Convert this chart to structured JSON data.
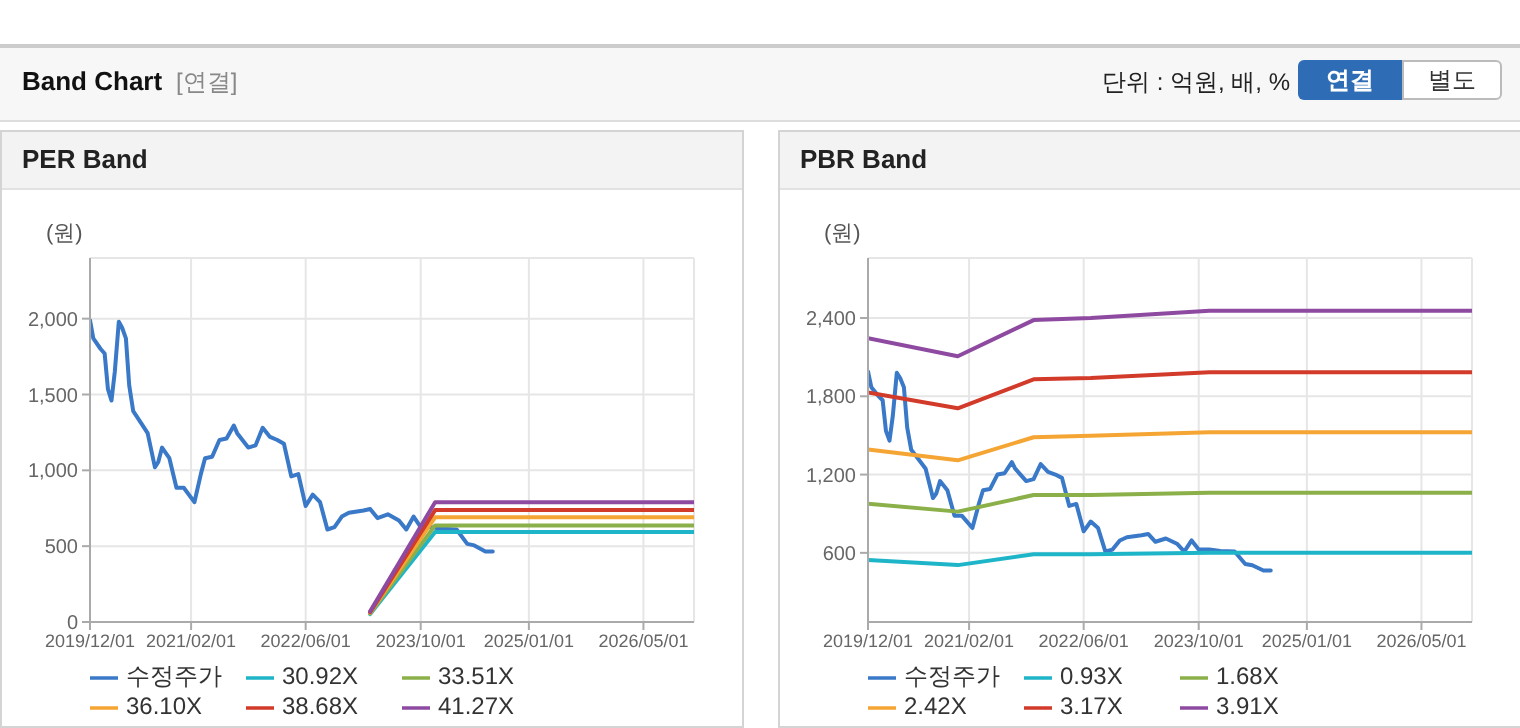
{
  "chart_data": [
    {
      "type": "line",
      "title": "PER Band",
      "ylabel": "(원)",
      "annotations": [
        "Band Chart",
        "[연결]",
        "단위 : 억원, 배, %",
        "연결",
        "별도"
      ],
      "xlim": [
        "2019-12-01",
        "2026-12-01"
      ],
      "xticks": [
        {
          "value": "2019-12-01",
          "label": "2019/12/01"
        },
        {
          "value": "2021-02-01",
          "label": "2021/02/01"
        },
        {
          "value": "2022-06-01",
          "label": "2022/06/01"
        },
        {
          "value": "2023-10-01",
          "label": "2023/10/01"
        },
        {
          "value": "2025-01-01",
          "label": "2025/01/01"
        },
        {
          "value": "2026-05-01",
          "label": "2026/05/01"
        }
      ],
      "ylim": [
        0,
        2400
      ],
      "yticks": [
        0,
        500,
        {
          "value": 1000,
          "label": "1,000"
        },
        {
          "value": 1500,
          "label": "1,500"
        },
        {
          "value": 2000,
          "label": "2,000"
        }
      ],
      "grid": true,
      "legend": "bottom",
      "marker": "none",
      "line_style": "solid",
      "series": [
        {
          "name": "수정주가",
          "color": "#3a78c8",
          "x": [
            "2019-12-01",
            "2019-12-15",
            "2020-01-15",
            "2020-02-01",
            "2020-02-15",
            "2020-03-01",
            "2020-03-15",
            "2020-04-01",
            "2020-04-15",
            "2020-05-01",
            "2020-05-15",
            "2020-06-01",
            "2020-07-01",
            "2020-08-01",
            "2020-09-01",
            "2020-09-15",
            "2020-10-01",
            "2020-11-01",
            "2020-12-01",
            "2021-01-01",
            "2021-02-15",
            "2021-03-15",
            "2021-04-01",
            "2021-05-01",
            "2021-06-01",
            "2021-07-01",
            "2021-08-01",
            "2021-08-15",
            "2021-10-01",
            "2021-11-01",
            "2021-12-01",
            "2022-01-01",
            "2022-02-01",
            "2022-03-01",
            "2022-04-01",
            "2022-05-01",
            "2022-06-01",
            "2022-07-01",
            "2022-08-01",
            "2022-09-01",
            "2022-10-01",
            "2022-11-01",
            "2022-12-01",
            "2023-02-01",
            "2023-03-01",
            "2023-04-01",
            "2023-05-15",
            "2023-07-01",
            "2023-08-01",
            "2023-09-01",
            "2023-10-01",
            "2023-11-15",
            "2024-01-01",
            "2024-03-01",
            "2024-04-15",
            "2024-05-15",
            "2024-07-01",
            "2024-08-01"
          ],
          "values": [
            1990,
            1870,
            1800,
            1770,
            1535,
            1460,
            1650,
            1980,
            1940,
            1870,
            1560,
            1390,
            1320,
            1245,
            1020,
            1055,
            1150,
            1080,
            885,
            885,
            790,
            980,
            1080,
            1090,
            1200,
            1210,
            1295,
            1245,
            1150,
            1165,
            1280,
            1220,
            1200,
            1175,
            960,
            975,
            765,
            840,
            790,
            610,
            625,
            695,
            720,
            735,
            745,
            685,
            710,
            670,
            610,
            695,
            625,
            625,
            615,
            610,
            515,
            505,
            465,
            465
          ]
        },
        {
          "name": "30.92X",
          "color": "#1fb5c9",
          "x": [
            "2023-03-01",
            "2023-12-01",
            "2026-12-01"
          ],
          "values": [
            52,
            594,
            594
          ]
        },
        {
          "name": "33.51X",
          "color": "#8bb04a",
          "x": [
            "2023-03-01",
            "2023-12-01",
            "2026-12-01"
          ],
          "values": [
            57,
            637,
            637
          ]
        },
        {
          "name": "36.10X",
          "color": "#f5a533",
          "x": [
            "2023-03-01",
            "2023-12-01",
            "2026-12-01"
          ],
          "values": [
            61,
            690,
            690
          ]
        },
        {
          "name": "38.68X",
          "color": "#d23a2a",
          "x": [
            "2023-03-01",
            "2023-12-01",
            "2026-12-01"
          ],
          "values": [
            65,
            738,
            738
          ]
        },
        {
          "name": "41.27X",
          "color": "#8e4aa0",
          "x": [
            "2023-03-01",
            "2023-12-01",
            "2026-12-01"
          ],
          "values": [
            70,
            790,
            790
          ]
        }
      ]
    },
    {
      "type": "line",
      "title": "PBR Band",
      "ylabel": "(원)",
      "xlim": [
        "2019-12-01",
        "2026-12-01"
      ],
      "xticks": [
        {
          "value": "2019-12-01",
          "label": "2019/12/01"
        },
        {
          "value": "2021-02-01",
          "label": "2021/02/01"
        },
        {
          "value": "2022-06-01",
          "label": "2022/06/01"
        },
        {
          "value": "2023-10-01",
          "label": "2023/10/01"
        },
        {
          "value": "2025-01-01",
          "label": "2025/01/01"
        },
        {
          "value": "2026-05-01",
          "label": "2026/05/01"
        }
      ],
      "ylim": [
        70,
        2860
      ],
      "yticks": [
        600,
        {
          "value": 1200,
          "label": "1,200"
        },
        {
          "value": 1800,
          "label": "1,800"
        },
        {
          "value": 2400,
          "label": "2,400"
        }
      ],
      "grid": true,
      "legend": "bottom",
      "marker": "none",
      "line_style": "solid",
      "series": [
        {
          "name": "수정주가",
          "color": "#3a78c8",
          "x": [
            "2019-12-01",
            "2019-12-15",
            "2020-01-15",
            "2020-02-01",
            "2020-02-15",
            "2020-03-01",
            "2020-03-15",
            "2020-04-01",
            "2020-04-15",
            "2020-05-01",
            "2020-05-15",
            "2020-06-01",
            "2020-07-01",
            "2020-08-01",
            "2020-09-01",
            "2020-09-15",
            "2020-10-01",
            "2020-11-01",
            "2020-12-01",
            "2021-01-01",
            "2021-02-15",
            "2021-03-15",
            "2021-04-01",
            "2021-05-01",
            "2021-06-01",
            "2021-07-01",
            "2021-08-01",
            "2021-08-15",
            "2021-10-01",
            "2021-11-01",
            "2021-12-01",
            "2022-01-01",
            "2022-02-01",
            "2022-03-01",
            "2022-04-01",
            "2022-05-01",
            "2022-06-01",
            "2022-07-01",
            "2022-08-01",
            "2022-09-01",
            "2022-10-01",
            "2022-11-01",
            "2022-12-01",
            "2023-02-01",
            "2023-03-01",
            "2023-04-01",
            "2023-05-15",
            "2023-07-01",
            "2023-08-01",
            "2023-09-01",
            "2023-10-01",
            "2023-11-15",
            "2024-01-01",
            "2024-03-01",
            "2024-04-15",
            "2024-05-15",
            "2024-07-01",
            "2024-08-01"
          ],
          "values": [
            1990,
            1870,
            1800,
            1770,
            1535,
            1460,
            1650,
            1980,
            1940,
            1870,
            1560,
            1390,
            1320,
            1245,
            1020,
            1055,
            1150,
            1080,
            885,
            885,
            790,
            980,
            1080,
            1090,
            1200,
            1210,
            1295,
            1245,
            1150,
            1165,
            1280,
            1220,
            1200,
            1175,
            960,
            975,
            765,
            840,
            790,
            610,
            625,
            695,
            720,
            735,
            745,
            685,
            710,
            670,
            610,
            695,
            625,
            625,
            615,
            610,
            515,
            505,
            465,
            465
          ]
        },
        {
          "name": "0.93X",
          "color": "#1fb5c9",
          "x": [
            "2019-12-01",
            "2020-12-15",
            "2021-11-01",
            "2022-07-01",
            "2023-11-15",
            "2026-12-01"
          ],
          "values": [
            545,
            506,
            589,
            589,
            600,
            600
          ]
        },
        {
          "name": "1.68X",
          "color": "#8bb04a",
          "x": [
            "2019-12-01",
            "2020-12-15",
            "2021-11-01",
            "2022-07-01",
            "2023-11-15",
            "2026-12-01"
          ],
          "values": [
            977,
            916,
            1043,
            1043,
            1060,
            1060
          ]
        },
        {
          "name": "2.42X",
          "color": "#f5a533",
          "x": [
            "2019-12-01",
            "2020-12-15",
            "2021-11-01",
            "2022-07-01",
            "2023-11-15",
            "2026-12-01"
          ],
          "values": [
            1392,
            1309,
            1486,
            1497,
            1525,
            1525
          ]
        },
        {
          "name": "3.17X",
          "color": "#d23a2a",
          "x": [
            "2019-12-01",
            "2020-12-15",
            "2021-11-01",
            "2022-07-01",
            "2023-11-15",
            "2026-12-01"
          ],
          "values": [
            1830,
            1708,
            1930,
            1940,
            1985,
            1985
          ]
        },
        {
          "name": "3.91X",
          "color": "#8e4aa0",
          "x": [
            "2019-12-01",
            "2020-12-15",
            "2021-11-01",
            "2022-07-01",
            "2023-11-15",
            "2026-12-01"
          ],
          "values": [
            2245,
            2107,
            2384,
            2400,
            2456,
            2456
          ]
        }
      ]
    }
  ]
}
